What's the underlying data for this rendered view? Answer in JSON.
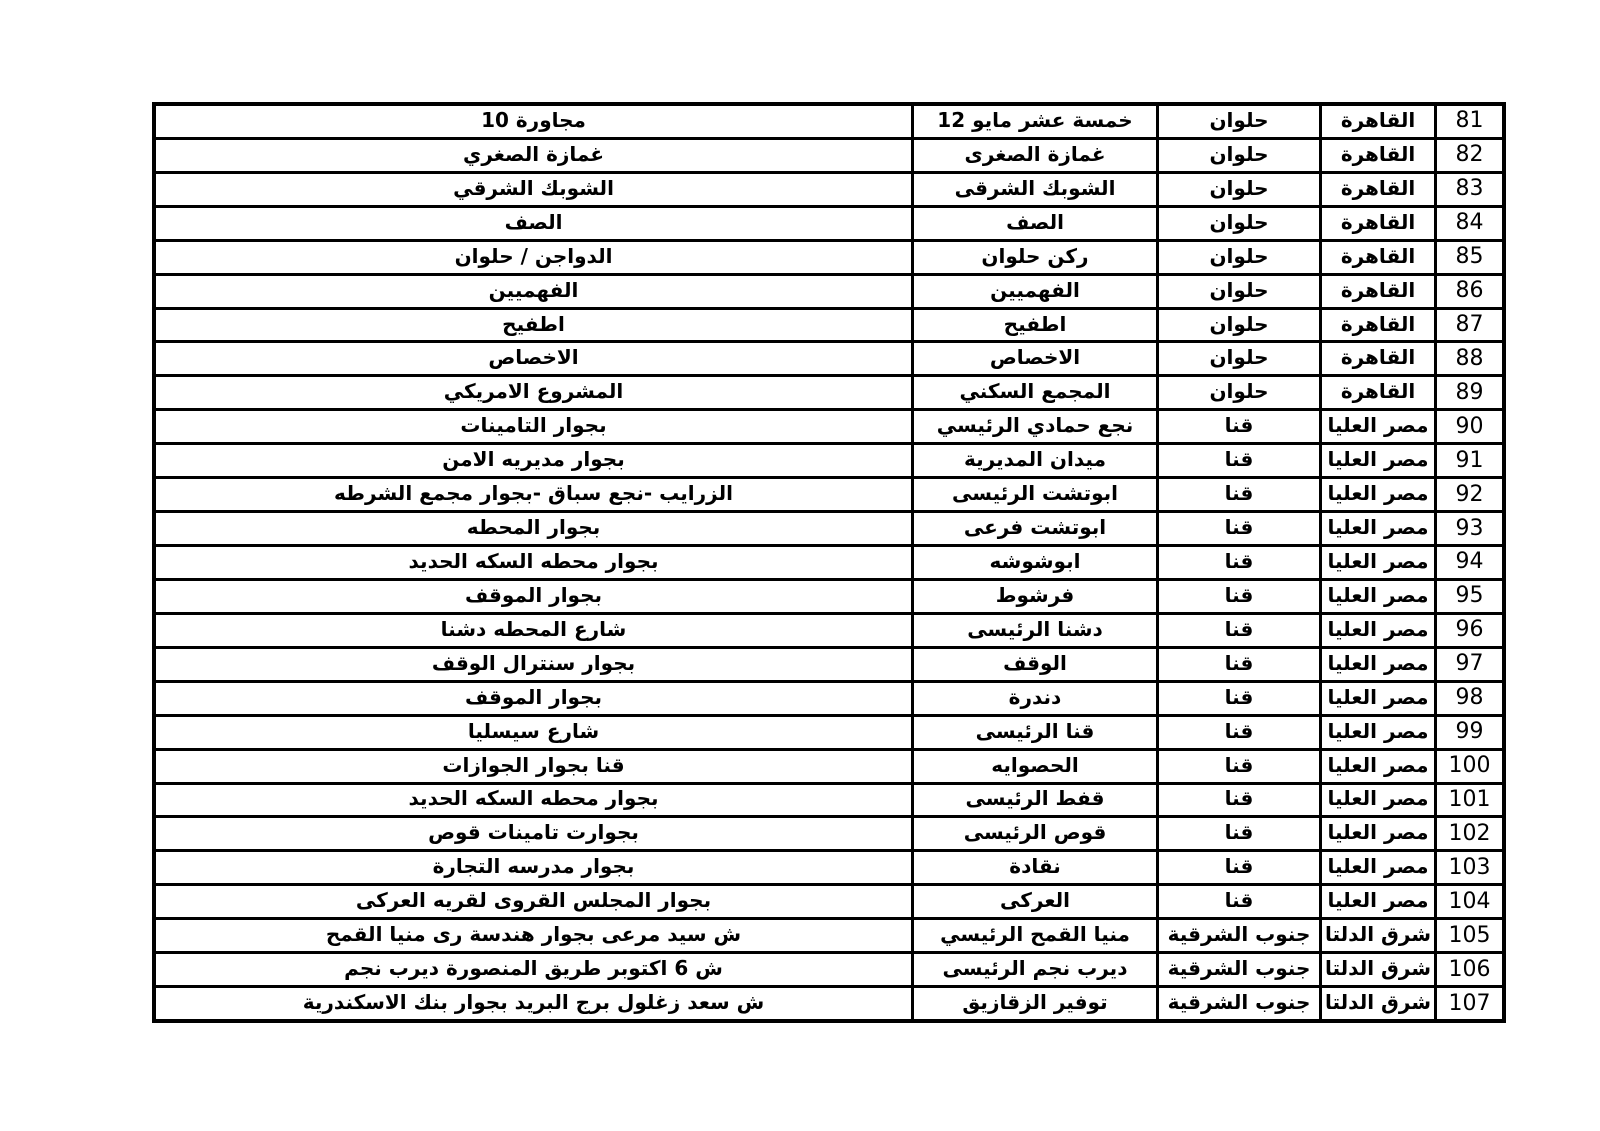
{
  "page": {
    "background_color": "#ffffff",
    "text_color": "#000000",
    "border_color": "#000000",
    "description": "Scanned document page: continuation of a post-office branch list table (rows 81-107), right-to-left Arabic table with columns: address, branch name, zone, region, row number"
  },
  "table": {
    "has_header_row": false,
    "columns_rtl_order": [
      "row-number",
      "region",
      "zone",
      "branch-name",
      "address"
    ],
    "rows": [
      {
        "num": "81",
        "region": "القاهرة",
        "zone": "حلوان",
        "name": "خمسة عشر مايو 12",
        "address": "مجاورة 10"
      },
      {
        "num": "82",
        "region": "القاهرة",
        "zone": "حلوان",
        "name": "غمازة الصغرى",
        "address": "غمازة الصغري"
      },
      {
        "num": "83",
        "region": "القاهرة",
        "zone": "حلوان",
        "name": "الشوبك الشرقى",
        "address": "الشوبك الشرقي"
      },
      {
        "num": "84",
        "region": "القاهرة",
        "zone": "حلوان",
        "name": "الصف",
        "address": "الصف"
      },
      {
        "num": "85",
        "region": "القاهرة",
        "zone": "حلوان",
        "name": "ركن حلوان",
        "address": "الدواجن / حلوان"
      },
      {
        "num": "86",
        "region": "القاهرة",
        "zone": "حلوان",
        "name": "الفهميين",
        "address": "الفهميين"
      },
      {
        "num": "87",
        "region": "القاهرة",
        "zone": "حلوان",
        "name": "اطفيح",
        "address": "اطفيح"
      },
      {
        "num": "88",
        "region": "القاهرة",
        "zone": "حلوان",
        "name": "الاخصاص",
        "address": "الاخصاص"
      },
      {
        "num": "89",
        "region": "القاهرة",
        "zone": "حلوان",
        "name": "المجمع السكني",
        "address": "المشروع الامريكي"
      },
      {
        "num": "90",
        "region": "مصر العليا",
        "zone": "قنا",
        "name": "نجع حمادي الرئيسي",
        "address": "بجوار التامينات"
      },
      {
        "num": "91",
        "region": "مصر العليا",
        "zone": "قنا",
        "name": "ميدان المديرية",
        "address": "بجوار مديريه الامن"
      },
      {
        "num": "92",
        "region": "مصر العليا",
        "zone": "قنا",
        "name": "ابوتشت الرئيسى",
        "address": "الزرايب -نجع سباق  -بجوار مجمع الشرطه"
      },
      {
        "num": "93",
        "region": "مصر العليا",
        "zone": "قنا",
        "name": "ابوتشت فرعى",
        "address": "بجوار المحطه"
      },
      {
        "num": "94",
        "region": "مصر العليا",
        "zone": "قنا",
        "name": "ابوشوشه",
        "address": "بجوار محطه السكه الحديد"
      },
      {
        "num": "95",
        "region": "مصر العليا",
        "zone": "قنا",
        "name": "فرشوط",
        "address": "بجوار الموقف"
      },
      {
        "num": "96",
        "region": "مصر العليا",
        "zone": "قنا",
        "name": "دشنا الرئيسى",
        "address": "شارع المحطه دشنا"
      },
      {
        "num": "97",
        "region": "مصر العليا",
        "zone": "قنا",
        "name": "الوقف",
        "address": "بجوار سنترال الوقف"
      },
      {
        "num": "98",
        "region": "مصر العليا",
        "zone": "قنا",
        "name": "دندرة",
        "address": "بجوار الموقف"
      },
      {
        "num": "99",
        "region": "مصر العليا",
        "zone": "قنا",
        "name": "قنا الرئيسى",
        "address": "شارع سيسليا"
      },
      {
        "num": "100",
        "region": "مصر العليا",
        "zone": "قنا",
        "name": "الحصوايه",
        "address": "قنا بجوار الجوازات"
      },
      {
        "num": "101",
        "region": "مصر العليا",
        "zone": "قنا",
        "name": "قفط الرئيسى",
        "address": "بجوار محطه السكه الحديد"
      },
      {
        "num": "102",
        "region": "مصر العليا",
        "zone": "قنا",
        "name": "قوص الرئيسى",
        "address": "بجوارت تامينات قوص"
      },
      {
        "num": "103",
        "region": "مصر العليا",
        "zone": "قنا",
        "name": "نقادة",
        "address": "بجوار مدرسه التجارة"
      },
      {
        "num": "104",
        "region": "مصر العليا",
        "zone": "قنا",
        "name": "العركى",
        "address": "بجوار المجلس القروى لقريه العركى"
      },
      {
        "num": "105",
        "region": "شرق الدلتا",
        "zone": "جنوب الشرقية",
        "name": "منيا القمح الرئيسي",
        "address": "ش سيد مرعى بجوار هندسة رى منيا القمح"
      },
      {
        "num": "106",
        "region": "شرق الدلتا",
        "zone": "جنوب الشرقية",
        "name": "ديرب نجم الرئيسى",
        "address": "ش 6 اكتوبر طريق المنصورة ديرب نجم"
      },
      {
        "num": "107",
        "region": "شرق الدلتا",
        "zone": "جنوب الشرقية",
        "name": "توفير الزقازيق",
        "address": "ش سعد زغلول برج البريد بجوار بنك الاسكندرية"
      }
    ]
  }
}
